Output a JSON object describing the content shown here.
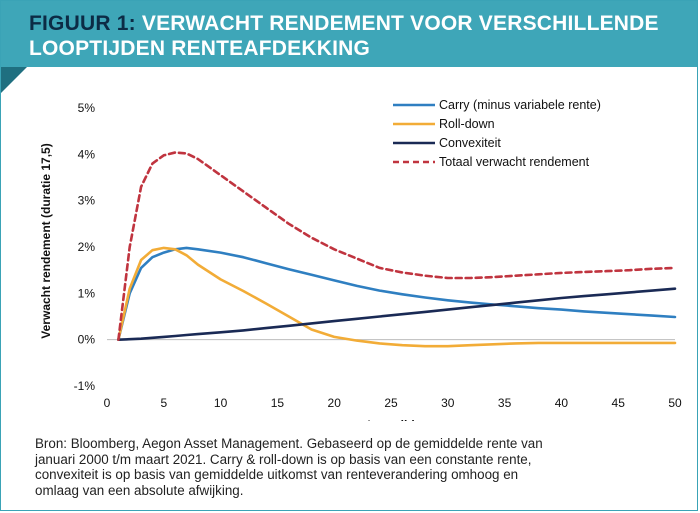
{
  "header": {
    "prefix": "FIGUUR 1:",
    "title_line1": "VERWACHT RENDEMENT VOOR VERSCHILLENDE",
    "title_line2": "LOOPTIJDEN RENTEAFDEKKING"
  },
  "source": {
    "lines": [
      "Bron: Bloomberg, Aegon Asset Management. Gebaseerd op de gemiddelde rente van",
      "januari 2000 t/m maart 2021. Carry & roll-down is op basis van een constante rente,",
      "convexiteit is op basis van gemiddelde uitkomst van renteverandering omhoog en",
      "omlaag van een absolute afwijking."
    ]
  },
  "chart_data": {
    "type": "line",
    "xlabel": "Looptijd",
    "ylabel": "Verwacht rendement (duratie 17,5)",
    "xlim": [
      0,
      50
    ],
    "ylim": [
      -1,
      5
    ],
    "x_ticks": [
      0,
      5,
      10,
      15,
      20,
      25,
      30,
      35,
      40,
      45,
      50
    ],
    "y_ticks": [
      -1,
      0,
      1,
      2,
      3,
      4,
      5
    ],
    "y_tick_labels": [
      "-1%",
      "0%",
      "1%",
      "2%",
      "3%",
      "4%",
      "5%"
    ],
    "grid": false,
    "legend_position": "top-right",
    "x": [
      1,
      2,
      3,
      4,
      5,
      6,
      7,
      8,
      10,
      12,
      14,
      16,
      18,
      20,
      22,
      24,
      26,
      28,
      30,
      32,
      34,
      36,
      38,
      40,
      42,
      44,
      46,
      48,
      50
    ],
    "series": [
      {
        "name": "Carry (minus variabele rente)",
        "color": "#2f7fc1",
        "style": "solid",
        "values": [
          0.0,
          1.0,
          1.55,
          1.78,
          1.88,
          1.95,
          1.98,
          1.95,
          1.88,
          1.78,
          1.65,
          1.52,
          1.4,
          1.28,
          1.16,
          1.06,
          0.98,
          0.91,
          0.85,
          0.8,
          0.76,
          0.72,
          0.68,
          0.65,
          0.61,
          0.58,
          0.55,
          0.52,
          0.49
        ]
      },
      {
        "name": "Roll-down",
        "color": "#f2ac37",
        "style": "solid",
        "values": [
          0.0,
          1.1,
          1.72,
          1.93,
          1.98,
          1.95,
          1.82,
          1.62,
          1.3,
          1.05,
          0.78,
          0.5,
          0.22,
          0.06,
          -0.02,
          -0.08,
          -0.12,
          -0.14,
          -0.14,
          -0.12,
          -0.1,
          -0.08,
          -0.07,
          -0.07,
          -0.07,
          -0.07,
          -0.07,
          -0.07,
          -0.07
        ]
      },
      {
        "name": "Convexiteit",
        "color": "#1a2a55",
        "style": "solid",
        "values": [
          0.0,
          0.01,
          0.02,
          0.04,
          0.06,
          0.08,
          0.1,
          0.12,
          0.16,
          0.2,
          0.25,
          0.3,
          0.35,
          0.4,
          0.45,
          0.5,
          0.55,
          0.6,
          0.65,
          0.7,
          0.75,
          0.8,
          0.85,
          0.9,
          0.94,
          0.98,
          1.02,
          1.06,
          1.1
        ]
      },
      {
        "name": "Totaal verwacht rendement",
        "color": "#c0343f",
        "style": "dashed",
        "values": [
          0.0,
          2.0,
          3.3,
          3.8,
          3.98,
          4.04,
          4.02,
          3.9,
          3.55,
          3.2,
          2.85,
          2.5,
          2.2,
          1.95,
          1.75,
          1.55,
          1.45,
          1.38,
          1.33,
          1.33,
          1.35,
          1.38,
          1.41,
          1.44,
          1.46,
          1.48,
          1.5,
          1.53,
          1.55
        ]
      }
    ]
  }
}
